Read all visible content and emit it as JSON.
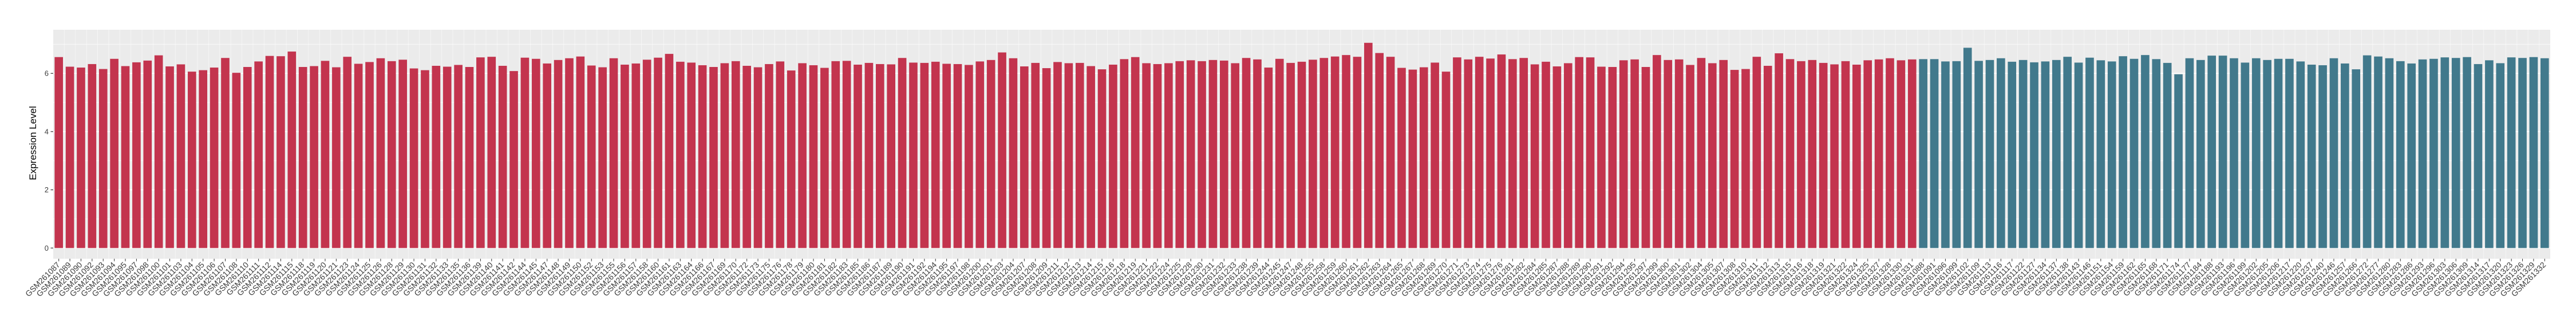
{
  "chart_data": {
    "type": "bar",
    "title": "",
    "xlabel": "",
    "ylabel": "Expression Level",
    "yticks": [
      0,
      2,
      4,
      6
    ],
    "yticks_minor": [
      1,
      3,
      5,
      7
    ],
    "ylim": [
      0,
      7.5
    ],
    "grid": true,
    "legend_position": "none",
    "panel_background": "#EBEBEB",
    "grid_color": "#FFFFFF",
    "tick_color": "#333333",
    "series": [
      {
        "name": "red-group",
        "color": "#C3344E",
        "count": 168
      },
      {
        "name": "teal-group",
        "color": "#41798C",
        "count": 57
      }
    ],
    "categories": [
      "GSM261087",
      "GSM261089",
      "GSM261090",
      "GSM261092",
      "GSM261093",
      "GSM261094",
      "GSM261095",
      "GSM261097",
      "GSM261098",
      "GSM261100",
      "GSM261101",
      "GSM261103",
      "GSM261104",
      "GSM261105",
      "GSM261106",
      "GSM261107",
      "GSM261108",
      "GSM261110",
      "GSM261111",
      "GSM261112",
      "GSM261114",
      "GSM261115",
      "GSM261118",
      "GSM261119",
      "GSM261120",
      "GSM261121",
      "GSM261123",
      "GSM261124",
      "GSM261125",
      "GSM261126",
      "GSM261128",
      "GSM261129",
      "GSM261130",
      "GSM261131",
      "GSM261132",
      "GSM261133",
      "GSM261135",
      "GSM261136",
      "GSM261139",
      "GSM261140",
      "GSM261141",
      "GSM261142",
      "GSM261144",
      "GSM261145",
      "GSM261147",
      "GSM261148",
      "GSM261149",
      "GSM261150",
      "GSM261152",
      "GSM261153",
      "GSM261155",
      "GSM261156",
      "GSM261157",
      "GSM261158",
      "GSM261160",
      "GSM261161",
      "GSM261163",
      "GSM261164",
      "GSM261166",
      "GSM261167",
      "GSM261169",
      "GSM261170",
      "GSM261172",
      "GSM261173",
      "GSM261175",
      "GSM261176",
      "GSM261178",
      "GSM261179",
      "GSM261180",
      "GSM261181",
      "GSM261182",
      "GSM261183",
      "GSM261185",
      "GSM261186",
      "GSM261187",
      "GSM261189",
      "GSM261190",
      "GSM261191",
      "GSM261192",
      "GSM261194",
      "GSM261195",
      "GSM261197",
      "GSM261198",
      "GSM261200",
      "GSM261201",
      "GSM261203",
      "GSM261204",
      "GSM261207",
      "GSM261208",
      "GSM261209",
      "GSM261211",
      "GSM261212",
      "GSM261213",
      "GSM261214",
      "GSM261215",
      "GSM261216",
      "GSM261218",
      "GSM261219",
      "GSM261221",
      "GSM261222",
      "GSM261224",
      "GSM261225",
      "GSM261228",
      "GSM261230",
      "GSM261231",
      "GSM261232",
      "GSM261233",
      "GSM261238",
      "GSM261239",
      "GSM261244",
      "GSM261245",
      "GSM261247",
      "GSM261248",
      "GSM261255",
      "GSM261258",
      "GSM261259",
      "GSM261260",
      "GSM261261",
      "GSM261262",
      "GSM261263",
      "GSM261264",
      "GSM261265",
      "GSM261267",
      "GSM261268",
      "GSM261269",
      "GSM261270",
      "GSM261271",
      "GSM261273",
      "GSM261274",
      "GSM261275",
      "GSM261276",
      "GSM261281",
      "GSM261282",
      "GSM261284",
      "GSM261285",
      "GSM261287",
      "GSM261288",
      "GSM261289",
      "GSM261290",
      "GSM261291",
      "GSM261292",
      "GSM261294",
      "GSM261295",
      "GSM261297",
      "GSM261299",
      "GSM261300",
      "GSM261301",
      "GSM261302",
      "GSM261304",
      "GSM261305",
      "GSM261307",
      "GSM261308",
      "GSM261310",
      "GSM261311",
      "GSM261312",
      "GSM261313",
      "GSM261315",
      "GSM261316",
      "GSM261318",
      "GSM261319",
      "GSM261321",
      "GSM261322",
      "GSM261324",
      "GSM261325",
      "GSM261327",
      "GSM261328",
      "GSM261330",
      "GSM261331",
      "GSM261088",
      "GSM261091",
      "GSM261096",
      "GSM261099",
      "GSM261102",
      "GSM261109",
      "GSM261113",
      "GSM261116",
      "GSM261117",
      "GSM261122",
      "GSM261127",
      "GSM261134",
      "GSM261137",
      "GSM261138",
      "GSM261143",
      "GSM261146",
      "GSM261151",
      "GSM261154",
      "GSM261159",
      "GSM261162",
      "GSM261165",
      "GSM261168",
      "GSM261171",
      "GSM261174",
      "GSM261177",
      "GSM261184",
      "GSM261188",
      "GSM261193",
      "GSM261196",
      "GSM261199",
      "GSM261202",
      "GSM261205",
      "GSM261206",
      "GSM261217",
      "GSM261220",
      "GSM261237",
      "GSM261240",
      "GSM261246",
      "GSM261257",
      "GSM261266",
      "GSM261272",
      "GSM261277",
      "GSM261280",
      "GSM261283",
      "GSM261286",
      "GSM261293",
      "GSM261296",
      "GSM261303",
      "GSM261306",
      "GSM261309",
      "GSM261314",
      "GSM261317",
      "GSM261320",
      "GSM261323",
      "GSM261326",
      "GSM261329",
      "GSM261332"
    ],
    "values": [
      6.56,
      6.23,
      6.2,
      6.32,
      6.15,
      6.5,
      6.25,
      6.38,
      6.44,
      6.62,
      6.24,
      6.31,
      6.06,
      6.11,
      6.2,
      6.53,
      6.02,
      6.22,
      6.41,
      6.6,
      6.59,
      6.75,
      6.22,
      6.25,
      6.43,
      6.21,
      6.57,
      6.33,
      6.39,
      6.52,
      6.42,
      6.47,
      6.17,
      6.11,
      6.26,
      6.23,
      6.29,
      6.22,
      6.55,
      6.57,
      6.26,
      6.08,
      6.54,
      6.5,
      6.34,
      6.46,
      6.52,
      6.58,
      6.27,
      6.21,
      6.52,
      6.3,
      6.34,
      6.47,
      6.54,
      6.67,
      6.4,
      6.37,
      6.28,
      6.22,
      6.35,
      6.42,
      6.26,
      6.21,
      6.32,
      6.41,
      6.1,
      6.35,
      6.28,
      6.19,
      6.42,
      6.43,
      6.3,
      6.36,
      6.32,
      6.31,
      6.53,
      6.37,
      6.36,
      6.4,
      6.33,
      6.32,
      6.29,
      6.41,
      6.46,
      6.72,
      6.52,
      6.24,
      6.36,
      6.18,
      6.39,
      6.35,
      6.36,
      6.25,
      6.14,
      6.3,
      6.49,
      6.56,
      6.35,
      6.32,
      6.35,
      6.42,
      6.45,
      6.42,
      6.46,
      6.44,
      6.35,
      6.53,
      6.48,
      6.2,
      6.5,
      6.36,
      6.4,
      6.47,
      6.53,
      6.58,
      6.63,
      6.57,
      7.05,
      6.7,
      6.57,
      6.19,
      6.13,
      6.21,
      6.37,
      6.06,
      6.55,
      6.48,
      6.57,
      6.51,
      6.65,
      6.49,
      6.53,
      6.31,
      6.4,
      6.24,
      6.35,
      6.56,
      6.55,
      6.23,
      6.22,
      6.45,
      6.48,
      6.22,
      6.63,
      6.46,
      6.48,
      6.29,
      6.53,
      6.35,
      6.46,
      6.12,
      6.15,
      6.57,
      6.26,
      6.69,
      6.49,
      6.42,
      6.46,
      6.36,
      6.31,
      6.42,
      6.3,
      6.45,
      6.48,
      6.52,
      6.45,
      6.48,
      6.49,
      6.49,
      6.41,
      6.42,
      6.88,
      6.43,
      6.46,
      6.52,
      6.4,
      6.46,
      6.38,
      6.41,
      6.46,
      6.57,
      6.37,
      6.54,
      6.45,
      6.41,
      6.59,
      6.5,
      6.63,
      6.49,
      6.36,
      5.97,
      6.52,
      6.46,
      6.61,
      6.61,
      6.52,
      6.37,
      6.52,
      6.46,
      6.5,
      6.5,
      6.41,
      6.3,
      6.28,
      6.52,
      6.34,
      6.14,
      6.62,
      6.58,
      6.52,
      6.42,
      6.34,
      6.48,
      6.5,
      6.55,
      6.53,
      6.56,
      6.32,
      6.45,
      6.35,
      6.55,
      6.53,
      6.56,
      6.52
    ]
  }
}
